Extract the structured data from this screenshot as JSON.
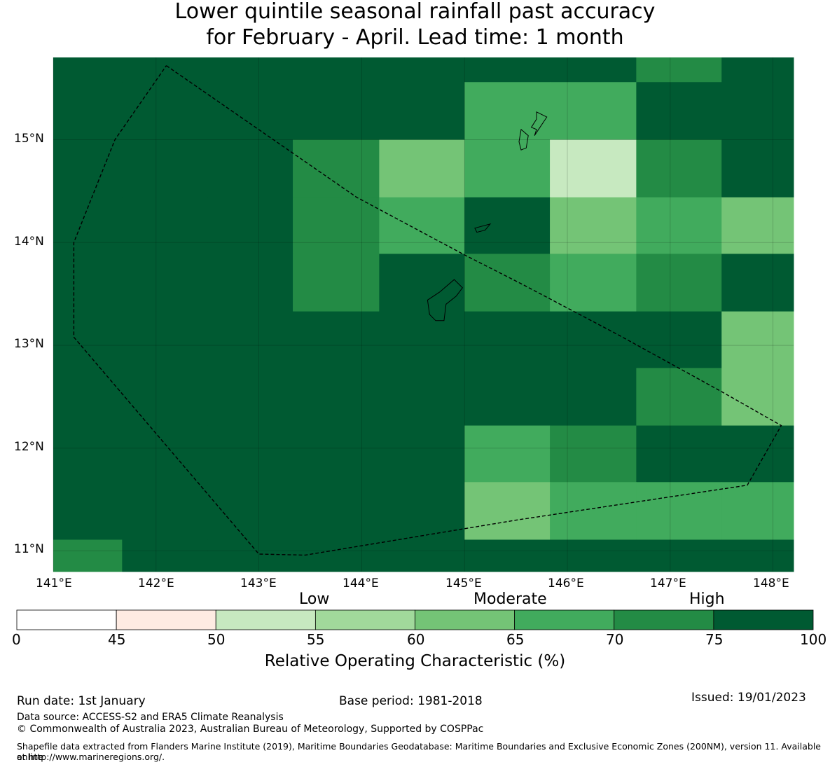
{
  "title_line1": "Lower quintile seasonal rainfall past accuracy",
  "title_line2": "for February - April. Lead time: 1 month",
  "map": {
    "lon_range": [
      141.0,
      148.2
    ],
    "lat_range": [
      10.8,
      15.8
    ],
    "lon_labels": [
      "141°E",
      "142°E",
      "143°E",
      "144°E",
      "145°E",
      "146°E",
      "147°E",
      "148°E"
    ],
    "lat_labels": [
      "15°N",
      "14°N",
      "13°N",
      "12°N",
      "11°N"
    ],
    "grid_columns_lon": [
      141.0,
      141.67,
      142.5,
      143.33,
      144.17,
      145.0,
      145.83,
      146.67,
      147.5,
      148.2
    ],
    "grid_rows_lat": [
      15.8,
      15.56,
      15.0,
      14.44,
      13.89,
      13.33,
      12.78,
      12.22,
      11.67,
      11.11,
      10.8
    ],
    "roc_cells": [
      [
        80,
        80,
        80,
        80,
        80,
        80,
        80,
        72,
        80
      ],
      [
        80,
        80,
        80,
        80,
        80,
        68,
        68,
        80,
        80
      ],
      [
        80,
        80,
        80,
        72,
        62,
        68,
        52,
        72,
        80
      ],
      [
        80,
        80,
        80,
        72,
        68,
        80,
        62,
        68,
        62
      ],
      [
        80,
        80,
        80,
        72,
        80,
        72,
        68,
        72,
        80
      ],
      [
        80,
        80,
        80,
        80,
        80,
        80,
        80,
        80,
        62
      ],
      [
        80,
        80,
        80,
        80,
        80,
        80,
        80,
        72,
        62
      ],
      [
        80,
        80,
        80,
        80,
        80,
        68,
        72,
        80,
        80
      ],
      [
        80,
        80,
        80,
        80,
        80,
        62,
        68,
        68,
        68
      ],
      [
        72,
        80,
        80,
        80,
        80,
        80,
        80,
        80,
        80
      ]
    ],
    "eez_boundary": [
      [
        142.1,
        15.72
      ],
      [
        143.95,
        14.44
      ],
      [
        145.0,
        13.88
      ],
      [
        145.55,
        13.6
      ],
      [
        146.5,
        13.1
      ],
      [
        147.5,
        12.55
      ],
      [
        148.08,
        12.22
      ],
      [
        147.75,
        11.64
      ],
      [
        145.5,
        11.3
      ],
      [
        143.45,
        10.96
      ],
      [
        143.0,
        10.97
      ],
      [
        141.2,
        13.08
      ],
      [
        141.2,
        14.0
      ],
      [
        141.6,
        15.0
      ],
      [
        142.1,
        15.72
      ]
    ],
    "islands": [
      [
        [
          145.7,
          15.27
        ],
        [
          145.8,
          15.22
        ],
        [
          145.72,
          15.1
        ],
        [
          145.68,
          15.04
        ],
        [
          145.7,
          15.1
        ],
        [
          145.65,
          15.12
        ],
        [
          145.7,
          15.2
        ],
        [
          145.7,
          15.27
        ]
      ],
      [
        [
          145.55,
          15.1
        ],
        [
          145.62,
          15.04
        ],
        [
          145.6,
          14.92
        ],
        [
          145.55,
          14.9
        ],
        [
          145.53,
          14.98
        ],
        [
          145.55,
          15.1
        ]
      ],
      [
        [
          145.1,
          14.14
        ],
        [
          145.25,
          14.18
        ],
        [
          145.2,
          14.12
        ],
        [
          145.12,
          14.1
        ],
        [
          145.1,
          14.14
        ]
      ],
      [
        [
          144.9,
          13.64
        ],
        [
          144.98,
          13.56
        ],
        [
          144.92,
          13.48
        ],
        [
          144.82,
          13.4
        ],
        [
          144.8,
          13.24
        ],
        [
          144.72,
          13.24
        ],
        [
          144.66,
          13.3
        ],
        [
          144.64,
          13.44
        ],
        [
          144.76,
          13.52
        ],
        [
          144.9,
          13.64
        ]
      ]
    ]
  },
  "colorbar": {
    "bounds": [
      0,
      45,
      50,
      55,
      60,
      65,
      70,
      75,
      100
    ],
    "tick_labels": [
      "0",
      "45",
      "50",
      "55",
      "60",
      "65",
      "70",
      "75",
      "100"
    ],
    "colors": [
      "#ffffff",
      "#feebe2",
      "#c7e9c0",
      "#a1d99b",
      "#74c476",
      "#41ab5d",
      "#238b45",
      "#005a32"
    ],
    "categories": [
      "Low",
      "Moderate",
      "High"
    ],
    "label": "Relative Operating Characteristic (%)"
  },
  "footer": {
    "run_date": "Run date: 1st January",
    "base_period": "Base period: 1981-2018",
    "issued": "Issued: 19/01/2023",
    "data_source": "Data source: ACCESS-S2 and ERA5 Climate Reanalysis",
    "copyright": "© Commonwealth of Australia 2023, Australian Bureau of Meteorology, Supported by COSPPac",
    "shapefile_line1": "Shapefile data extracted from Flanders Marine Institute (2019), Maritime Boundaries Geodatabase: Maritime Boundaries and Exclusive Economic Zones (200NM), version 11. Available online",
    "shapefile_line2": "at http://www.marineregions.org/."
  }
}
